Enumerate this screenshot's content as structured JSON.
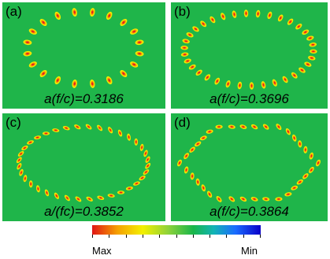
{
  "panels": [
    {
      "label": "(a)",
      "caption": "a(f/c)=0.3186",
      "shape": "sparse-ring",
      "count": 20
    },
    {
      "label": "(b)",
      "caption": "a(f/c)=0.3696",
      "shape": "dense-ring",
      "count": 34
    },
    {
      "label": "(c)",
      "caption": "a/(fc)=0.3852",
      "shape": "dashed-ring",
      "count": 36
    },
    {
      "label": "(d)",
      "caption": "a(f/c)=0.3864",
      "shape": "hexagonal-ring",
      "count": 34
    }
  ],
  "colorbar": {
    "max_label": "Max",
    "min_label": "Min",
    "colors": [
      "#e01515",
      "#f5a000",
      "#f3f000",
      "#8fd23a",
      "#18b64a",
      "#12b4b4",
      "#1a6cff",
      "#0a00c8"
    ]
  },
  "colors": {
    "background": "#1fb54a",
    "spot_core": "#e42020",
    "spot_mid": "#f7a000",
    "spot_edge": "#f2ee00"
  }
}
